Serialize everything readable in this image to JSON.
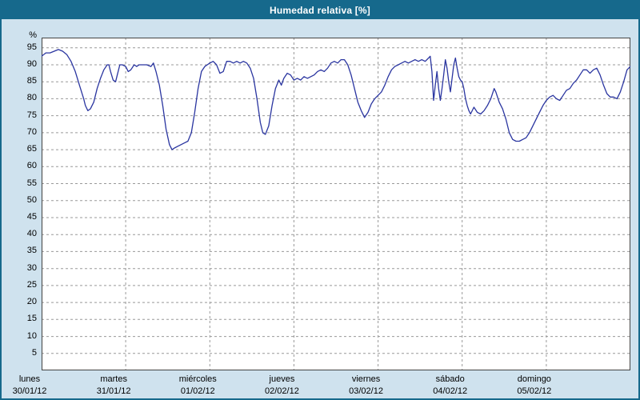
{
  "title": "Humedad relativa [%]",
  "colors": {
    "titlebar": "#16698c",
    "frame_border": "#16698c",
    "background": "#cfe2ee",
    "plot_background": "#ffffff",
    "plot_border": "#444444",
    "grid": "#999999",
    "line": "#2a35a0"
  },
  "chart_data": {
    "type": "line",
    "title": "Humedad relativa [%]",
    "xlabel": "",
    "ylabel": "%",
    "ylim": [
      0,
      98
    ],
    "yticks": [
      5,
      10,
      15,
      20,
      25,
      30,
      35,
      40,
      45,
      50,
      55,
      60,
      65,
      70,
      75,
      80,
      85,
      90,
      95
    ],
    "grid": "dashed",
    "legend_position": "none",
    "x_days": [
      {
        "name": "lunes",
        "date": "30/01/12"
      },
      {
        "name": "martes",
        "date": "31/01/12"
      },
      {
        "name": "miércoles",
        "date": "01/02/12"
      },
      {
        "name": "jueves",
        "date": "02/02/12"
      },
      {
        "name": "viernes",
        "date": "03/02/12"
      },
      {
        "name": "sábado",
        "date": "04/02/12"
      },
      {
        "name": "domingo",
        "date": "05/02/12"
      }
    ],
    "series": [
      {
        "name": "Humedad relativa",
        "color": "#2a35a0",
        "x_unit": "days_from_start",
        "points": [
          [
            0.0,
            92.5
          ],
          [
            0.05,
            93.5
          ],
          [
            0.1,
            93.5
          ],
          [
            0.15,
            94.0
          ],
          [
            0.2,
            94.5
          ],
          [
            0.25,
            94.0
          ],
          [
            0.3,
            93.0
          ],
          [
            0.35,
            91.0
          ],
          [
            0.4,
            88.0
          ],
          [
            0.45,
            84.0
          ],
          [
            0.5,
            80.0
          ],
          [
            0.52,
            78.0
          ],
          [
            0.55,
            76.5
          ],
          [
            0.58,
            77.0
          ],
          [
            0.62,
            79.0
          ],
          [
            0.66,
            83.0
          ],
          [
            0.7,
            86.0
          ],
          [
            0.74,
            88.5
          ],
          [
            0.78,
            90.0
          ],
          [
            0.8,
            90.0
          ],
          [
            0.82,
            88.0
          ],
          [
            0.85,
            85.5
          ],
          [
            0.88,
            85.0
          ],
          [
            0.9,
            87.0
          ],
          [
            0.93,
            90.0
          ],
          [
            0.96,
            90.0
          ],
          [
            1.0,
            89.5
          ],
          [
            1.03,
            88.0
          ],
          [
            1.06,
            88.5
          ],
          [
            1.1,
            90.0
          ],
          [
            1.13,
            89.5
          ],
          [
            1.16,
            90.0
          ],
          [
            1.2,
            90.0
          ],
          [
            1.25,
            90.0
          ],
          [
            1.3,
            89.5
          ],
          [
            1.33,
            90.5
          ],
          [
            1.36,
            88.0
          ],
          [
            1.4,
            84.0
          ],
          [
            1.44,
            78.0
          ],
          [
            1.48,
            71.0
          ],
          [
            1.52,
            66.5
          ],
          [
            1.55,
            65.0
          ],
          [
            1.58,
            65.5
          ],
          [
            1.62,
            66.0
          ],
          [
            1.66,
            66.5
          ],
          [
            1.7,
            67.0
          ],
          [
            1.74,
            67.5
          ],
          [
            1.78,
            70.0
          ],
          [
            1.82,
            76.0
          ],
          [
            1.86,
            83.0
          ],
          [
            1.9,
            88.0
          ],
          [
            1.94,
            89.5
          ],
          [
            1.97,
            90.0
          ],
          [
            2.0,
            90.5
          ],
          [
            2.04,
            91.0
          ],
          [
            2.08,
            90.0
          ],
          [
            2.12,
            87.5
          ],
          [
            2.16,
            88.0
          ],
          [
            2.2,
            91.0
          ],
          [
            2.24,
            91.0
          ],
          [
            2.28,
            90.5
          ],
          [
            2.32,
            91.0
          ],
          [
            2.36,
            90.5
          ],
          [
            2.4,
            91.0
          ],
          [
            2.44,
            90.5
          ],
          [
            2.48,
            89.0
          ],
          [
            2.52,
            86.0
          ],
          [
            2.56,
            80.0
          ],
          [
            2.6,
            73.0
          ],
          [
            2.63,
            70.0
          ],
          [
            2.66,
            69.5
          ],
          [
            2.7,
            72.0
          ],
          [
            2.74,
            78.0
          ],
          [
            2.78,
            83.0
          ],
          [
            2.82,
            85.5
          ],
          [
            2.85,
            84.0
          ],
          [
            2.88,
            86.0
          ],
          [
            2.92,
            87.5
          ],
          [
            2.96,
            87.0
          ],
          [
            3.0,
            85.5
          ],
          [
            3.04,
            86.0
          ],
          [
            3.08,
            85.5
          ],
          [
            3.12,
            86.5
          ],
          [
            3.16,
            86.0
          ],
          [
            3.2,
            86.5
          ],
          [
            3.24,
            87.0
          ],
          [
            3.28,
            88.0
          ],
          [
            3.32,
            88.5
          ],
          [
            3.36,
            88.0
          ],
          [
            3.4,
            89.0
          ],
          [
            3.44,
            90.5
          ],
          [
            3.48,
            91.0
          ],
          [
            3.52,
            90.5
          ],
          [
            3.56,
            91.5
          ],
          [
            3.6,
            91.5
          ],
          [
            3.64,
            90.0
          ],
          [
            3.68,
            87.0
          ],
          [
            3.72,
            83.0
          ],
          [
            3.76,
            79.0
          ],
          [
            3.8,
            76.5
          ],
          [
            3.84,
            74.5
          ],
          [
            3.88,
            76.0
          ],
          [
            3.92,
            78.5
          ],
          [
            3.96,
            80.0
          ],
          [
            4.0,
            81.0
          ],
          [
            4.04,
            82.0
          ],
          [
            4.08,
            84.0
          ],
          [
            4.12,
            86.5
          ],
          [
            4.16,
            88.5
          ],
          [
            4.2,
            89.5
          ],
          [
            4.24,
            90.0
          ],
          [
            4.28,
            90.5
          ],
          [
            4.32,
            91.0
          ],
          [
            4.36,
            90.5
          ],
          [
            4.4,
            91.0
          ],
          [
            4.44,
            91.5
          ],
          [
            4.48,
            91.0
          ],
          [
            4.52,
            91.5
          ],
          [
            4.56,
            91.0
          ],
          [
            4.6,
            92.0
          ],
          [
            4.62,
            92.5
          ],
          [
            4.64,
            88.0
          ],
          [
            4.66,
            79.5
          ],
          [
            4.68,
            84.0
          ],
          [
            4.7,
            88.0
          ],
          [
            4.72,
            83.0
          ],
          [
            4.74,
            79.5
          ],
          [
            4.76,
            83.0
          ],
          [
            4.78,
            87.0
          ],
          [
            4.8,
            91.5
          ],
          [
            4.82,
            89.0
          ],
          [
            4.84,
            85.0
          ],
          [
            4.86,
            82.0
          ],
          [
            4.88,
            86.0
          ],
          [
            4.9,
            90.0
          ],
          [
            4.92,
            92.0
          ],
          [
            4.94,
            89.0
          ],
          [
            4.96,
            86.5
          ],
          [
            4.98,
            85.5
          ],
          [
            5.0,
            85.0
          ],
          [
            5.02,
            83.0
          ],
          [
            5.04,
            80.0
          ],
          [
            5.06,
            78.0
          ],
          [
            5.08,
            76.5
          ],
          [
            5.1,
            75.5
          ],
          [
            5.14,
            77.5
          ],
          [
            5.18,
            76.0
          ],
          [
            5.22,
            75.5
          ],
          [
            5.26,
            76.5
          ],
          [
            5.3,
            78.0
          ],
          [
            5.34,
            80.0
          ],
          [
            5.38,
            83.0
          ],
          [
            5.4,
            82.0
          ],
          [
            5.44,
            79.0
          ],
          [
            5.48,
            77.0
          ],
          [
            5.52,
            74.0
          ],
          [
            5.56,
            70.0
          ],
          [
            5.6,
            68.0
          ],
          [
            5.64,
            67.5
          ],
          [
            5.68,
            67.5
          ],
          [
            5.72,
            68.0
          ],
          [
            5.76,
            68.5
          ],
          [
            5.8,
            70.0
          ],
          [
            5.84,
            72.0
          ],
          [
            5.88,
            74.0
          ],
          [
            5.92,
            76.0
          ],
          [
            5.96,
            78.0
          ],
          [
            6.0,
            79.5
          ],
          [
            6.04,
            80.5
          ],
          [
            6.08,
            81.0
          ],
          [
            6.12,
            80.0
          ],
          [
            6.16,
            79.5
          ],
          [
            6.2,
            81.0
          ],
          [
            6.24,
            82.5
          ],
          [
            6.28,
            83.0
          ],
          [
            6.32,
            84.5
          ],
          [
            6.36,
            85.5
          ],
          [
            6.4,
            87.0
          ],
          [
            6.44,
            88.5
          ],
          [
            6.48,
            88.5
          ],
          [
            6.52,
            87.5
          ],
          [
            6.56,
            88.5
          ],
          [
            6.6,
            89.0
          ],
          [
            6.64,
            87.0
          ],
          [
            6.68,
            84.0
          ],
          [
            6.72,
            81.5
          ],
          [
            6.76,
            80.5
          ],
          [
            6.8,
            80.5
          ],
          [
            6.84,
            80.0
          ],
          [
            6.88,
            82.0
          ],
          [
            6.92,
            85.0
          ],
          [
            6.96,
            88.5
          ],
          [
            7.0,
            89.5
          ]
        ]
      }
    ]
  }
}
